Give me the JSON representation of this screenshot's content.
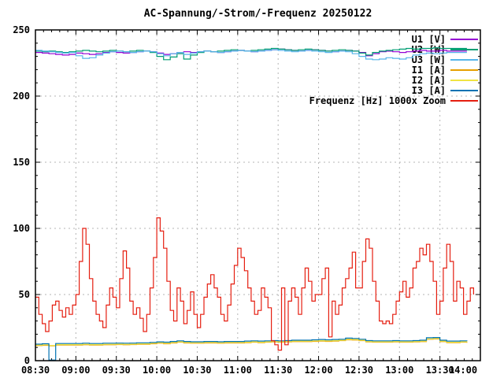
{
  "chart_data": {
    "type": "line",
    "title": "AC-Spannung/-Strom/-Frequenz 20250122",
    "xlabel": "",
    "ylabel": "",
    "x_unit": "time (HH:MM), minutes encoded since midnight",
    "x_min": 510,
    "x_max": 840,
    "x_tick_minutes": [
      510,
      540,
      570,
      600,
      630,
      660,
      690,
      720,
      750,
      780,
      810,
      840
    ],
    "x_tick_labels": [
      "08:30",
      "09:00",
      "09:30",
      "10:00",
      "10:30",
      "11:00",
      "11:30",
      "12:00",
      "12:30",
      "13:00",
      "13:30",
      "14:00"
    ],
    "x_minor_step": 6,
    "ylim": [
      0,
      250
    ],
    "y_ticks": [
      0,
      50,
      100,
      150,
      200,
      250
    ],
    "y_minor_step": 10,
    "grid": true,
    "grid_color": "#b4b4b4",
    "legend_position": "top-right-inside",
    "series": [
      {
        "name": "U1 [V]",
        "color": "#9400d3",
        "x_start": 510,
        "x_step": 5,
        "values": [
          233,
          232.5,
          232,
          231.5,
          231,
          231.5,
          232.5,
          232,
          231.5,
          232,
          233,
          233.5,
          233,
          232.5,
          233,
          233.5,
          234,
          233.5,
          232.5,
          231.5,
          232,
          233,
          233.5,
          233,
          233.5,
          234,
          233.5,
          233,
          233.5,
          234,
          234.5,
          234,
          233.5,
          234,
          234.5,
          235,
          235.5,
          235,
          234.5,
          234,
          234.5,
          235,
          234.5,
          234,
          233.5,
          234,
          234.5,
          234,
          233,
          230.5,
          232,
          233.5,
          234,
          233.5,
          233,
          233.5,
          234,
          234.5,
          234,
          234,
          234.5,
          234,
          234,
          234,
          234
        ]
      },
      {
        "name": "U2 [W]",
        "color": "#009e73",
        "x_start": 510,
        "x_step": 5,
        "values": [
          234,
          233.5,
          234,
          233.5,
          233,
          233.5,
          234,
          234.5,
          234,
          233.5,
          234,
          234.5,
          234,
          233.5,
          234,
          234.5,
          234,
          233,
          230,
          227.5,
          229.5,
          232,
          228,
          231,
          233,
          234,
          233.5,
          234,
          234.5,
          235,
          234.5,
          234,
          234.5,
          235,
          235.5,
          236,
          235.5,
          235,
          234.5,
          235,
          235.5,
          235,
          234.5,
          234,
          234.5,
          235,
          234.5,
          234,
          232.5,
          231,
          233,
          234,
          234.5,
          235,
          235.5,
          236,
          235.5,
          236,
          236,
          236.5,
          236,
          236,
          236,
          236,
          236
        ]
      },
      {
        "name": "U3 [W]",
        "color": "#56b4e9",
        "x_start": 510,
        "x_step": 5,
        "values": [
          234.5,
          234,
          233.5,
          233,
          232.5,
          233,
          230.5,
          228.5,
          229,
          231,
          232.5,
          233.5,
          234,
          233.5,
          233,
          233.5,
          234,
          233.5,
          232,
          230.5,
          232,
          233,
          231.5,
          232.5,
          233.5,
          234,
          233.5,
          233,
          233.5,
          234,
          234.5,
          234,
          233.5,
          234,
          234.5,
          235,
          234.5,
          234,
          233.5,
          234,
          234.5,
          234,
          233.5,
          233,
          233.5,
          234,
          233.5,
          232,
          230,
          228,
          227.5,
          228,
          229,
          228.5,
          228,
          229,
          231,
          232,
          232.5,
          232,
          232.5,
          233,
          233,
          233,
          233
        ]
      },
      {
        "name": "I1 [A]",
        "color": "#e69f00",
        "x_start": 510,
        "x_step": 5,
        "values": [
          11.4,
          11.6,
          11.2,
          11.8,
          11.8,
          11.8,
          11.8,
          12,
          11.8,
          11.8,
          12,
          12,
          12.2,
          12,
          12.2,
          12.4,
          12.4,
          12.8,
          13.2,
          12.8,
          13.4,
          14,
          13.4,
          13.2,
          13.2,
          13.4,
          13.4,
          13.2,
          13.4,
          13.4,
          13.4,
          13.6,
          14,
          13.6,
          14,
          14.2,
          14,
          14.2,
          14.4,
          14.4,
          14.4,
          14.6,
          14.8,
          14.6,
          14.8,
          15.2,
          15.8,
          15.6,
          15.2,
          14.2,
          14,
          14,
          14,
          14.2,
          14,
          14,
          14.2,
          14.4,
          16.2,
          16.4,
          14.4,
          13.6,
          13.6,
          14,
          13.6
        ]
      },
      {
        "name": "I2 [A]",
        "color": "#f0e442",
        "x_start": 510,
        "x_step": 5,
        "values": [
          11.8,
          12,
          11.5,
          12.2,
          12.2,
          12.2,
          12.2,
          12.4,
          12.2,
          12.2,
          12.4,
          12.4,
          12.5,
          12.4,
          12.5,
          12.8,
          12.8,
          13.2,
          13.6,
          13.2,
          13.8,
          14.3,
          13.8,
          13.6,
          13.6,
          13.8,
          13.8,
          13.6,
          13.8,
          13.8,
          13.8,
          14,
          14.3,
          14,
          14.3,
          14.5,
          14.3,
          14.5,
          14.8,
          14.8,
          14.8,
          15,
          15.2,
          15,
          15.2,
          15.5,
          16.2,
          16,
          15.5,
          14.5,
          14.3,
          14.3,
          14.3,
          14.5,
          14.3,
          14.3,
          14.5,
          14.8,
          16.5,
          16.8,
          14.8,
          14,
          14,
          14.3,
          14
        ]
      },
      {
        "name": "I3 [A]",
        "color": "#0072b2",
        "x_start": 510,
        "x_step": 5,
        "values": [
          12.5,
          12.8,
          0.5,
          13,
          13,
          13,
          13,
          13.2,
          13,
          13,
          13.2,
          13.2,
          13.3,
          13.2,
          13.3,
          13.5,
          13.5,
          13.8,
          14.2,
          14,
          14.5,
          15,
          14.5,
          14.3,
          14.3,
          14.5,
          14.5,
          14.3,
          14.5,
          14.5,
          14.5,
          14.8,
          15,
          14.8,
          15,
          15.2,
          15,
          15.2,
          15.5,
          15.5,
          15.5,
          15.8,
          16,
          15.8,
          16,
          16.2,
          17,
          16.8,
          16.2,
          15.2,
          15,
          15,
          15,
          15.2,
          15,
          15,
          15.2,
          15.5,
          17.3,
          17.5,
          15.5,
          14.8,
          14.8,
          15,
          14.8
        ]
      },
      {
        "name": "Frequenz [Hz] 1000x Zoom",
        "color": "#e51e10",
        "x_start": 510,
        "x_step": 2.5,
        "values": [
          48,
          35,
          28,
          22,
          30,
          42,
          45,
          38,
          33,
          40,
          35,
          42,
          50,
          75,
          100,
          88,
          62,
          45,
          35,
          30,
          25,
          42,
          55,
          48,
          40,
          62,
          83,
          70,
          45,
          35,
          40,
          32,
          22,
          35,
          55,
          78,
          108,
          98,
          85,
          60,
          38,
          30,
          55,
          45,
          28,
          38,
          52,
          35,
          25,
          35,
          48,
          58,
          65,
          55,
          48,
          35,
          30,
          42,
          58,
          72,
          85,
          78,
          68,
          55,
          45,
          35,
          38,
          55,
          48,
          40,
          15,
          12,
          8,
          55,
          12,
          45,
          55,
          48,
          35,
          55,
          70,
          60,
          45,
          50,
          50,
          62,
          70,
          18,
          45,
          35,
          42,
          55,
          62,
          70,
          82,
          55,
          55,
          75,
          92,
          85,
          60,
          45,
          30,
          28,
          30,
          28,
          35,
          45,
          52,
          60,
          48,
          55,
          70,
          75,
          85,
          80,
          88,
          75,
          60,
          35,
          45,
          70,
          88,
          75,
          45,
          60,
          55,
          35,
          45,
          55,
          50
        ]
      }
    ]
  }
}
